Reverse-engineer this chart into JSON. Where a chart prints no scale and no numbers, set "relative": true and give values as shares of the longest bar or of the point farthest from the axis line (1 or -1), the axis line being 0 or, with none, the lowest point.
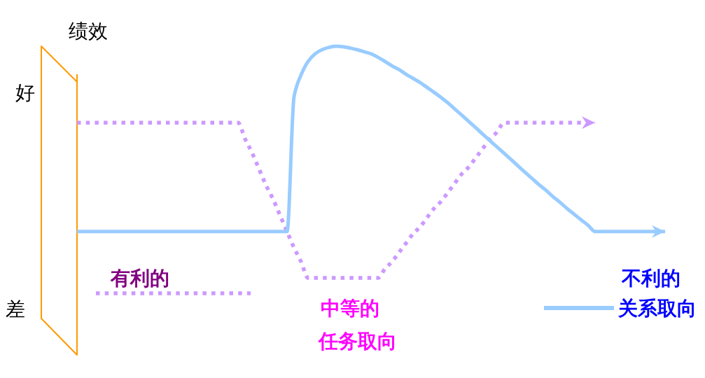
{
  "chart_data": {
    "type": "line",
    "relative": true,
    "ylabel": "绩效",
    "legend": "bottom",
    "annotations": [
      "好",
      "差",
      "有利的",
      "中等的",
      "不利的"
    ],
    "categories": [
      null,
      null,
      null,
      null,
      null,
      null,
      null,
      null,
      null,
      null,
      null,
      null,
      null,
      null,
      null,
      null,
      null,
      null,
      null,
      null,
      null,
      null,
      null,
      null,
      null,
      null,
      null,
      null,
      null,
      null,
      null,
      null,
      null,
      null,
      null,
      null,
      null,
      null,
      null,
      null,
      null,
      null,
      null,
      null,
      null,
      null,
      null,
      null,
      null,
      null,
      null,
      null,
      null,
      null,
      null,
      null,
      null,
      null,
      null,
      null,
      null,
      null,
      null,
      null,
      null,
      null,
      null,
      null,
      null,
      null,
      null,
      null,
      null,
      null,
      null,
      null,
      null,
      null,
      null,
      null,
      null,
      null,
      null,
      null,
      null
    ],
    "series": [
      {
        "name": "任务取向",
        "color": "#cc99ff",
        "line_style": "dotted",
        "values": [
          0.67,
          0.67,
          0.67,
          0.67,
          0.67,
          0.67,
          0.67,
          0.67,
          0.67,
          0.67,
          0.67,
          0.67,
          0.67,
          0.67,
          0.67,
          0.67,
          0.67,
          0.67,
          0.67,
          0.67,
          0.67,
          0.67,
          0.67,
          0.67,
          0.6,
          0.54,
          0.47,
          0.4,
          0.34,
          0.27,
          0.2,
          0.13,
          0.07,
          0,
          0,
          0,
          0,
          0,
          0,
          0,
          0,
          0,
          0,
          0,
          0.04,
          0.07,
          0.11,
          0.15,
          0.19,
          0.22,
          0.26,
          0.3,
          0.33,
          0.37,
          0.41,
          0.45,
          0.48,
          0.52,
          0.56,
          0.6,
          0.63,
          0.67,
          0.67,
          0.67,
          0.67,
          0.67,
          0.67,
          0.67,
          0.67,
          0.67,
          0.67,
          0.67,
          0.67,
          0.67,
          0.67,
          null,
          null,
          null,
          null,
          null,
          null,
          null,
          null,
          null,
          null
        ]
      },
      {
        "name": "关系取向",
        "color": "#99ccff",
        "line_style": "solid",
        "values": [
          0.2,
          0.2,
          0.2,
          0.2,
          0.2,
          0.2,
          0.2,
          0.2,
          0.2,
          0.2,
          0.2,
          0.2,
          0.2,
          0.2,
          0.2,
          0.2,
          0.2,
          0.2,
          0.2,
          0.2,
          0.2,
          0.2,
          0.2,
          0.2,
          0.2,
          0.2,
          0.2,
          0.2,
          0.2,
          0.2,
          0.2,
          0.782,
          0.876,
          0.934,
          0.967,
          0.985,
          0.995,
          1,
          0.998,
          0.992,
          0.985,
          0.976,
          0.967,
          0.952,
          0.934,
          0.915,
          0.899,
          0.879,
          0.861,
          0.843,
          0.822,
          0.801,
          0.779,
          0.755,
          0.728,
          0.701,
          0.674,
          0.647,
          0.619,
          0.592,
          0.565,
          0.538,
          0.511,
          0.483,
          0.456,
          0.429,
          0.402,
          0.378,
          0.35,
          0.326,
          0.299,
          0.275,
          0.251,
          0.227,
          0.2,
          0.2,
          0.2,
          0.2,
          0.2,
          0.2,
          0.2,
          0.2,
          0.2,
          0.2,
          0.2
        ]
      }
    ]
  }
}
